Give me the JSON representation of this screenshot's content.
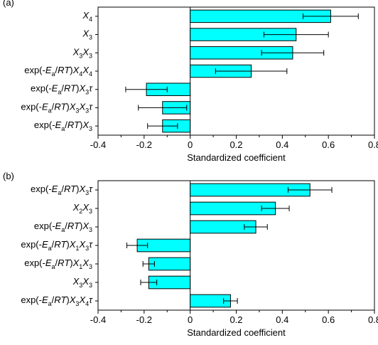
{
  "colors": {
    "bar_fill": "#00ffff",
    "bar_stroke": "#000000",
    "axis": "#000000"
  },
  "chart_data": [
    {
      "type": "bar",
      "orientation": "horizontal",
      "panel_label": "(a)",
      "xlabel": "Standardized coefficient",
      "xlim": [
        -0.4,
        0.8
      ],
      "xticks": [
        "-0.4",
        "-0.2",
        "0",
        "0.2",
        "0.4",
        "0.6",
        "0.8"
      ],
      "categories": [
        "X4",
        "X3",
        "X3X3",
        "exp(-Ea/RT)X4X4",
        "exp(-Ea/RT)X3τ",
        "exp(-Ea/RT)X3X3τ",
        "exp(-Ea/RT)X3"
      ],
      "values": [
        0.61,
        0.46,
        0.445,
        0.265,
        -0.19,
        -0.12,
        -0.12
      ],
      "error": [
        0.12,
        0.14,
        0.135,
        0.155,
        0.09,
        0.105,
        0.065
      ]
    },
    {
      "type": "bar",
      "orientation": "horizontal",
      "panel_label": "(b)",
      "xlabel": "Standardized coefficient",
      "xlim": [
        -0.4,
        0.8
      ],
      "xticks": [
        "-0.4",
        "-0.2",
        "0",
        "0.2",
        "0.4",
        "0.6",
        "0.8"
      ],
      "categories": [
        "exp(-Ea/RT)X3τ",
        "X2X3",
        "exp(-Ea/RT)X3",
        "exp(-Ea/RT)X1X3τ",
        "exp(-Ea/RT)X1X3",
        "X3X3",
        "exp(-Ea/RT)X3X4τ"
      ],
      "values": [
        0.52,
        0.37,
        0.285,
        -0.23,
        -0.18,
        -0.18,
        0.175
      ],
      "error": [
        0.095,
        0.06,
        0.05,
        0.045,
        0.025,
        0.035,
        0.03
      ]
    }
  ]
}
